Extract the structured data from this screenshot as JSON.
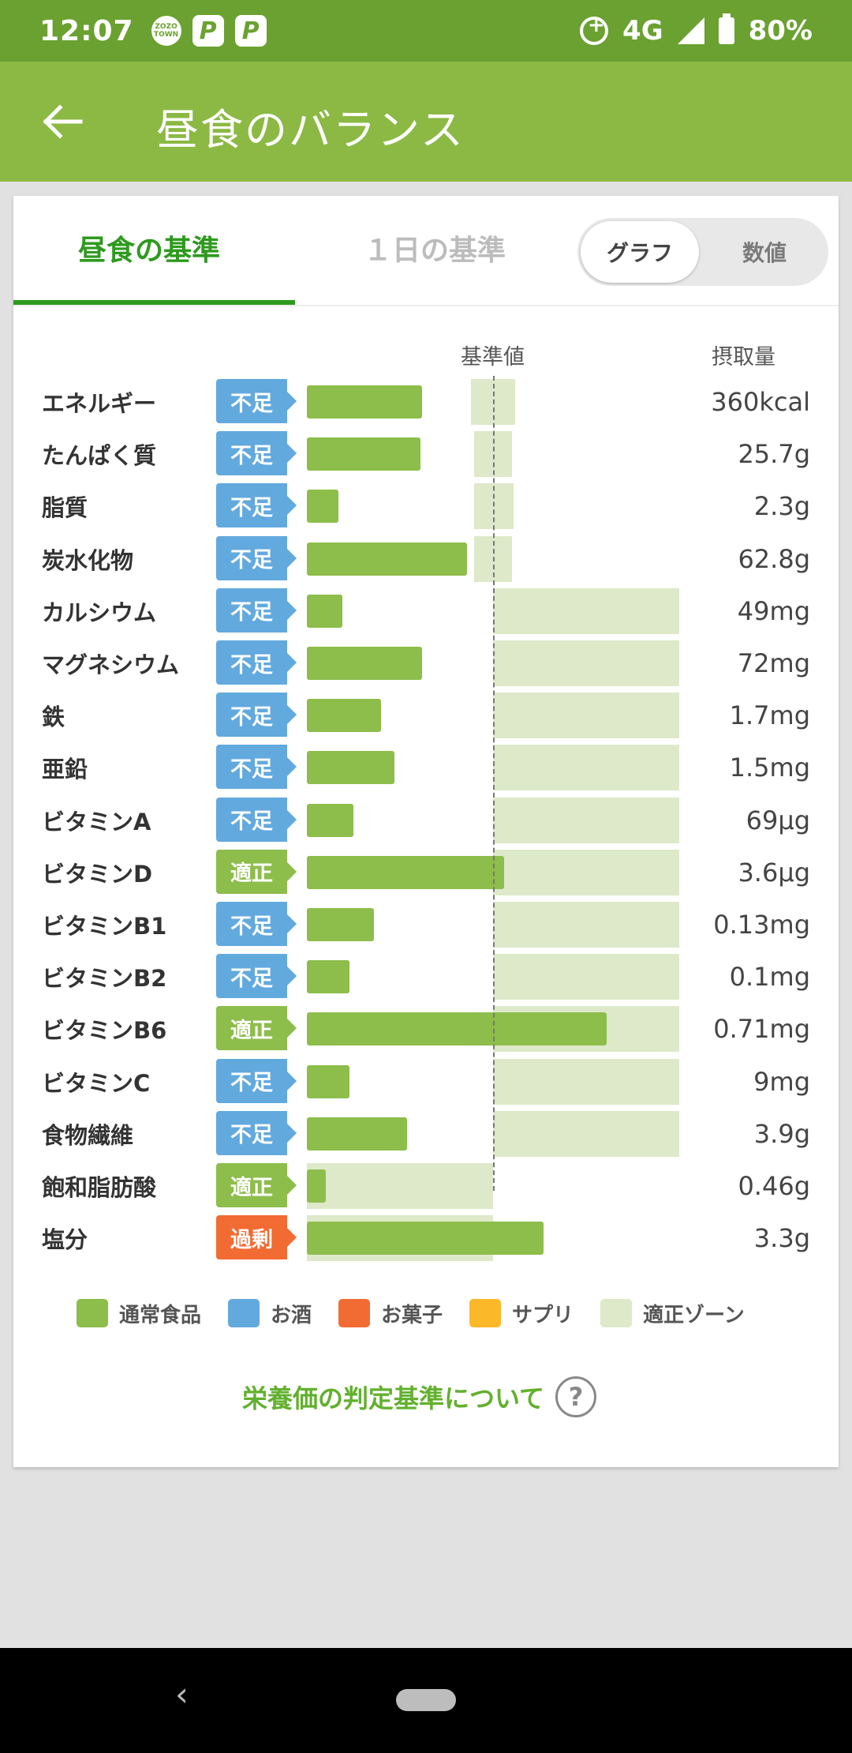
{
  "status": {
    "time": "12:07",
    "network": "4G",
    "battery": "80%",
    "zozo_label": "ZOZO TOWN",
    "p_label": "P"
  },
  "appbar": {
    "title": "昼食のバランス"
  },
  "tabs": {
    "lunch": "昼食の基準",
    "day": "１日の基準"
  },
  "toggle": {
    "graph": "グラフ",
    "values": "数値"
  },
  "chart_header": {
    "standard": "基準値",
    "intake": "摂取量"
  },
  "colors": {
    "insufficient": "#62a9de",
    "adequate": "#8dbd4b",
    "excess": "#f26b33",
    "bar": "#8dbd4b",
    "zone": "#dde9c9"
  },
  "chart_data": {
    "type": "bar",
    "x_axis": "intake relative to standard (1.0 = 基準値)",
    "rows": [
      {
        "name": "エネルギー",
        "status": "不足",
        "status_type": "insufficient",
        "ratio": 0.62,
        "zone": [
          0.88,
          1.12
        ],
        "value": "360kcal"
      },
      {
        "name": "たんぱく質",
        "status": "不足",
        "status_type": "insufficient",
        "ratio": 0.61,
        "zone": [
          0.9,
          1.1
        ],
        "value": "25.7g"
      },
      {
        "name": "脂質",
        "status": "不足",
        "status_type": "insufficient",
        "ratio": 0.17,
        "zone": [
          0.9,
          1.11
        ],
        "value": "2.3g"
      },
      {
        "name": "炭水化物",
        "status": "不足",
        "status_type": "insufficient",
        "ratio": 0.86,
        "zone": [
          0.9,
          1.1
        ],
        "value": "62.8g"
      },
      {
        "name": "カルシウム",
        "status": "不足",
        "status_type": "insufficient",
        "ratio": 0.19,
        "zone": [
          1.0,
          2.0
        ],
        "value": "49mg"
      },
      {
        "name": "マグネシウム",
        "status": "不足",
        "status_type": "insufficient",
        "ratio": 0.62,
        "zone": [
          1.0,
          2.0
        ],
        "value": "72mg"
      },
      {
        "name": "鉄",
        "status": "不足",
        "status_type": "insufficient",
        "ratio": 0.4,
        "zone": [
          1.0,
          2.0
        ],
        "value": "1.7mg"
      },
      {
        "name": "亜鉛",
        "status": "不足",
        "status_type": "insufficient",
        "ratio": 0.47,
        "zone": [
          1.0,
          2.0
        ],
        "value": "1.5mg"
      },
      {
        "name": "ビタミンA",
        "status": "不足",
        "status_type": "insufficient",
        "ratio": 0.25,
        "zone": [
          1.0,
          2.0
        ],
        "value": "69µg"
      },
      {
        "name": "ビタミンD",
        "status": "適正",
        "status_type": "adequate",
        "ratio": 1.06,
        "zone": [
          1.0,
          2.0
        ],
        "value": "3.6µg"
      },
      {
        "name": "ビタミンB1",
        "status": "不足",
        "status_type": "insufficient",
        "ratio": 0.36,
        "zone": [
          1.0,
          2.0
        ],
        "value": "0.13mg"
      },
      {
        "name": "ビタミンB2",
        "status": "不足",
        "status_type": "insufficient",
        "ratio": 0.23,
        "zone": [
          1.0,
          2.0
        ],
        "value": "0.1mg"
      },
      {
        "name": "ビタミンB6",
        "status": "適正",
        "status_type": "adequate",
        "ratio": 1.61,
        "zone": [
          1.0,
          2.0
        ],
        "value": "0.71mg"
      },
      {
        "name": "ビタミンC",
        "status": "不足",
        "status_type": "insufficient",
        "ratio": 0.23,
        "zone": [
          1.0,
          2.0
        ],
        "value": "9mg"
      },
      {
        "name": "食物繊維",
        "status": "不足",
        "status_type": "insufficient",
        "ratio": 0.54,
        "zone": [
          1.0,
          2.0
        ],
        "value": "3.9g"
      },
      {
        "name": "飽和脂肪酸",
        "status": "適正",
        "status_type": "adequate",
        "ratio": 0.1,
        "zone": [
          0.0,
          1.0
        ],
        "value": "0.46g"
      },
      {
        "name": "塩分",
        "status": "過剰",
        "status_type": "excess",
        "ratio": 1.27,
        "zone": [
          0.0,
          1.0
        ],
        "value": "3.3g"
      }
    ]
  },
  "legend": [
    {
      "label": "通常食品",
      "color": "#8dbd4b"
    },
    {
      "label": "お酒",
      "color": "#62a9de"
    },
    {
      "label": "お菓子",
      "color": "#f26b33"
    },
    {
      "label": "サプリ",
      "color": "#fbb829"
    },
    {
      "label": "適正ゾーン",
      "color": "#dde9c9"
    }
  ],
  "criteria_link": {
    "label": "栄養価の判定基準について",
    "help_icon": "?"
  },
  "nav": {
    "back_icon": "‹"
  }
}
